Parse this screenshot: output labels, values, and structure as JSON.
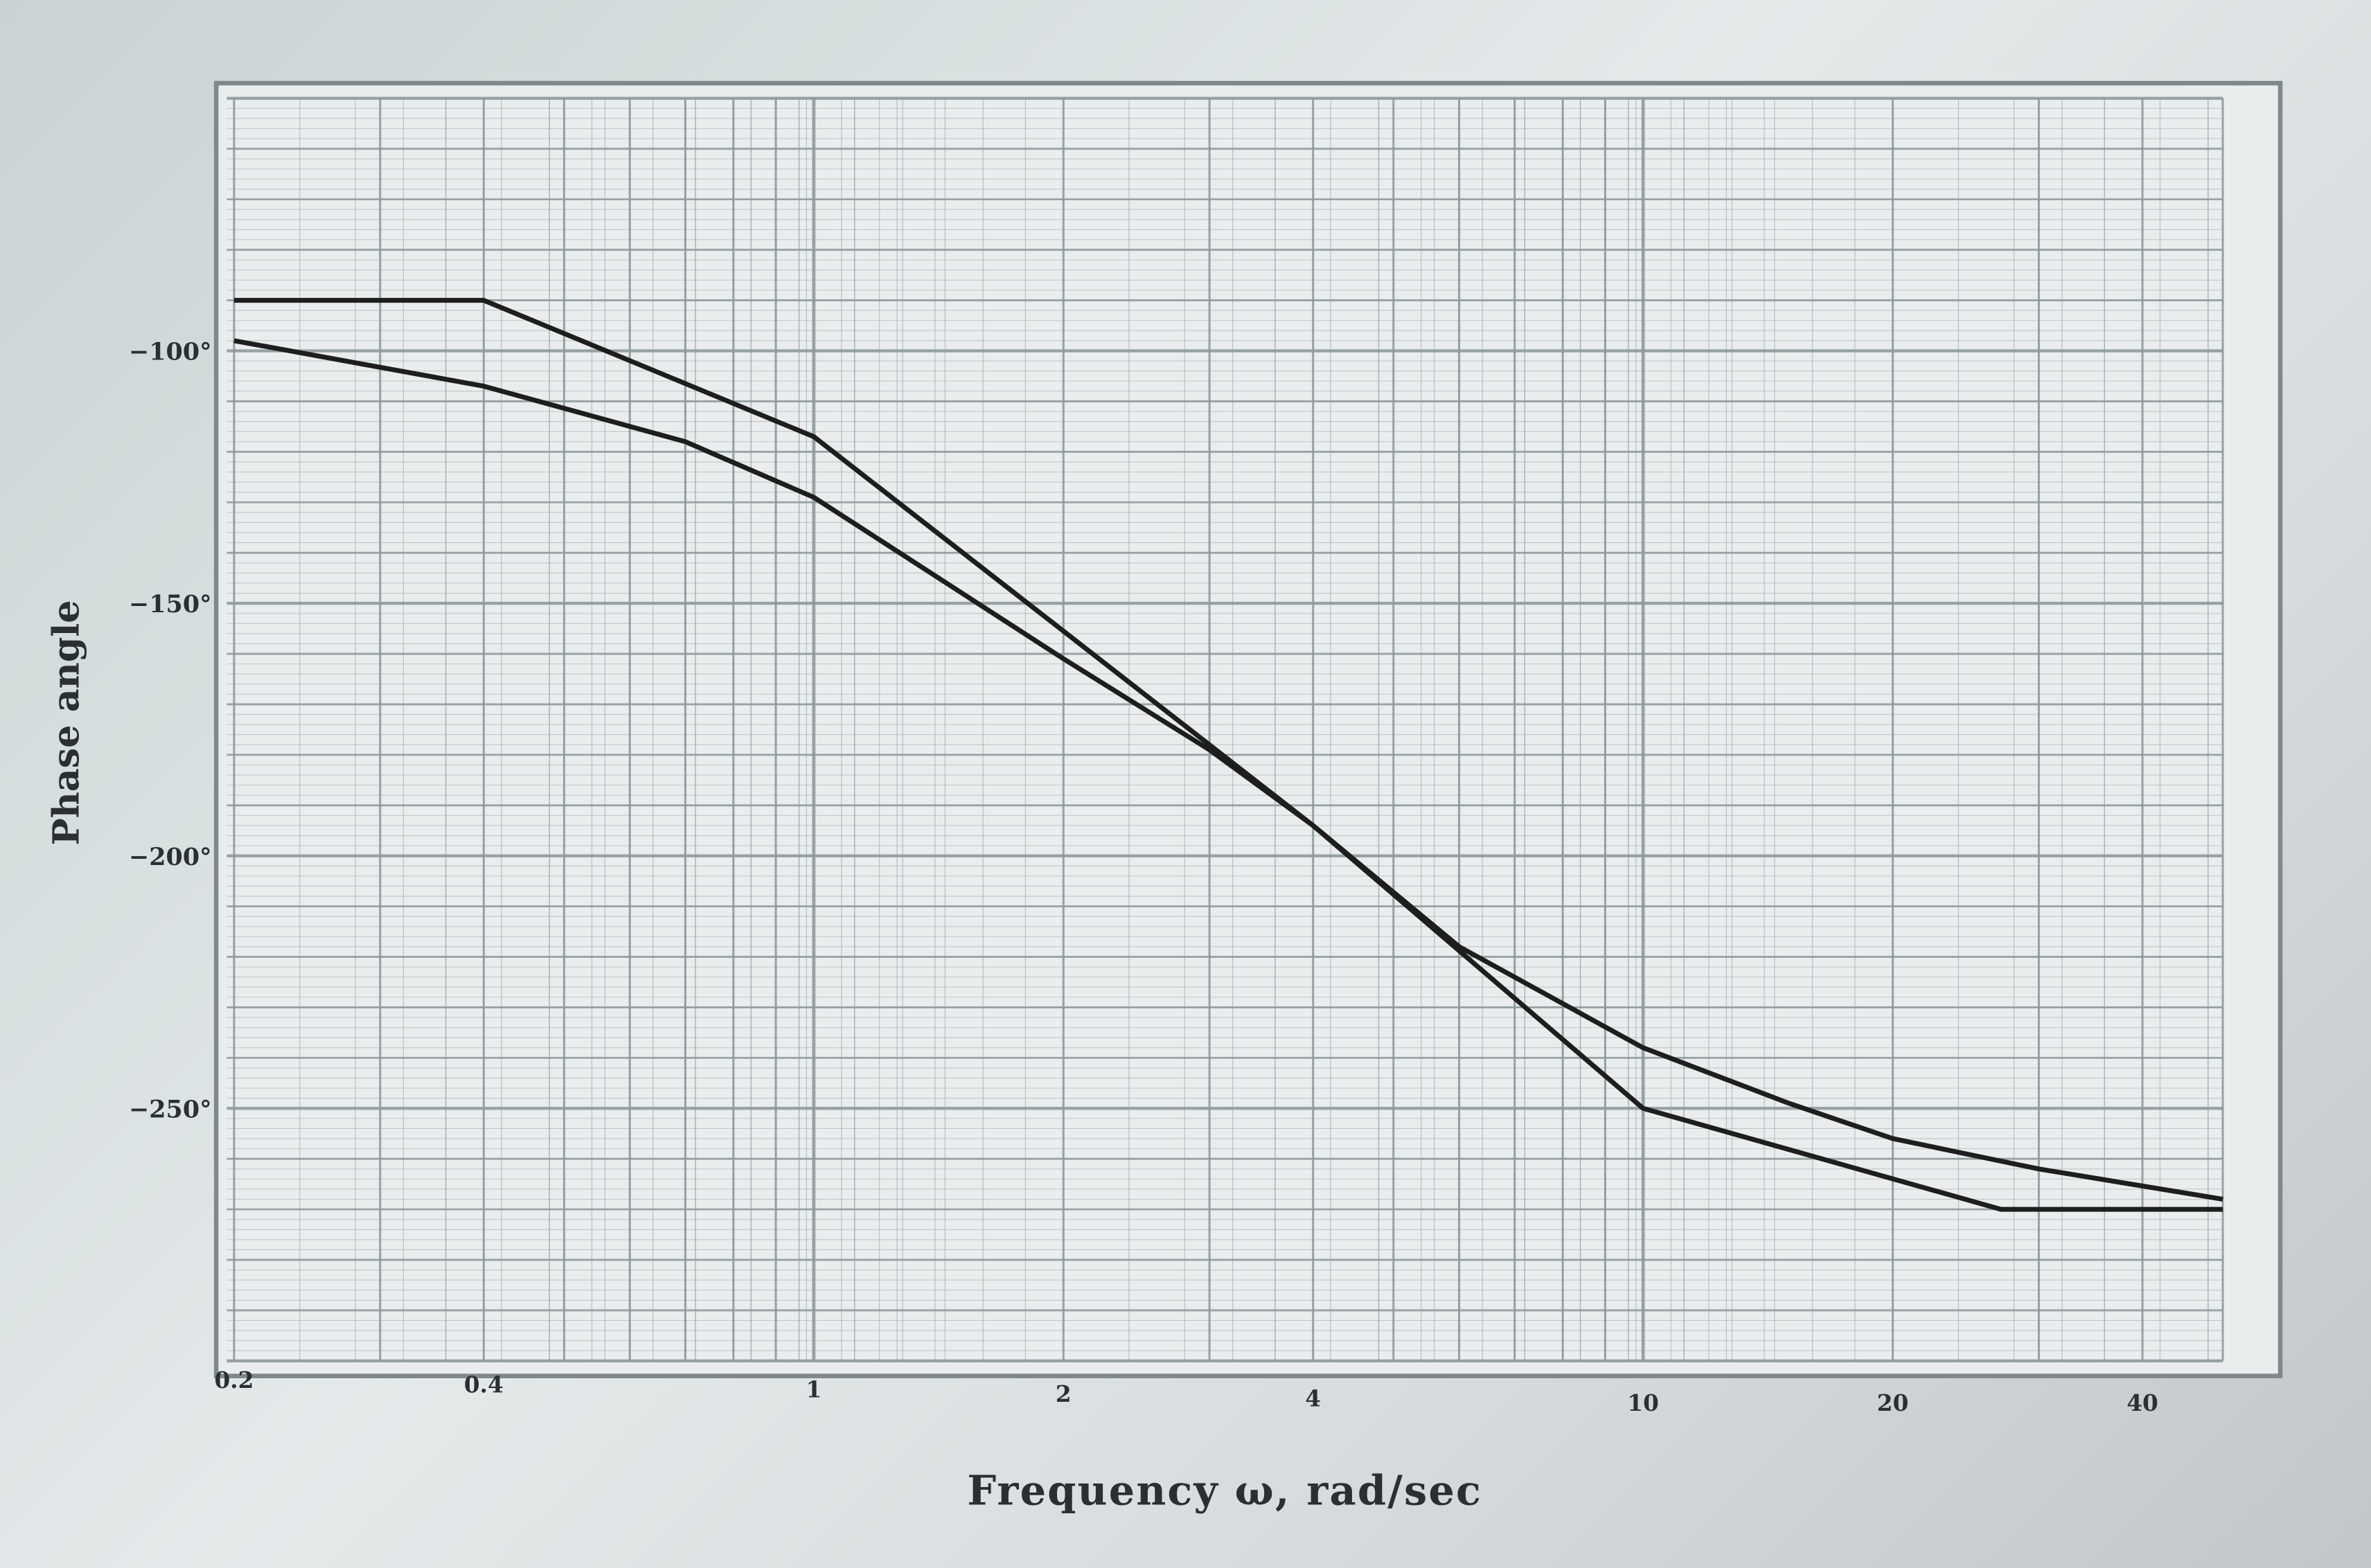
{
  "chart_data": {
    "type": "line",
    "title": "",
    "xlabel": "Frequency ω, rad/sec",
    "ylabel": "Phase angle",
    "x_scale": "log",
    "xlim": [
      0.196,
      50
    ],
    "ylim": [
      -300,
      -50
    ],
    "grid": true,
    "x_ticks": [
      {
        "value": 0.2,
        "label": "0.2"
      },
      {
        "value": 0.4,
        "label": "0.4"
      },
      {
        "value": 1,
        "label": "1"
      },
      {
        "value": 2,
        "label": "2"
      },
      {
        "value": 4,
        "label": "4"
      },
      {
        "value": 10,
        "label": "10"
      },
      {
        "value": 20,
        "label": "20"
      },
      {
        "value": 40,
        "label": "40"
      }
    ],
    "y_ticks": [
      {
        "value": -100,
        "label": "−100°"
      },
      {
        "value": -150,
        "label": "−150°"
      },
      {
        "value": -200,
        "label": "−200°"
      },
      {
        "value": -250,
        "label": "−250°"
      }
    ],
    "series": [
      {
        "points": [
          [
            0.2,
            -90
          ],
          [
            0.4,
            -90
          ],
          [
            1,
            -117
          ],
          [
            4,
            -194
          ],
          [
            10,
            -250
          ],
          [
            27,
            -270
          ],
          [
            50,
            -270
          ]
        ]
      },
      {
        "points": [
          [
            0.2,
            -98
          ],
          [
            0.4,
            -107
          ],
          [
            0.7,
            -118
          ],
          [
            1,
            -129
          ],
          [
            2,
            -161
          ],
          [
            3,
            -179
          ],
          [
            4,
            -194
          ],
          [
            6,
            -218
          ],
          [
            10,
            -238
          ],
          [
            15,
            -249
          ],
          [
            20,
            -256
          ],
          [
            30,
            -262
          ],
          [
            50,
            -268
          ]
        ]
      }
    ],
    "line_color": "#1e1e1e",
    "grid_color": "#8f9a9e"
  }
}
